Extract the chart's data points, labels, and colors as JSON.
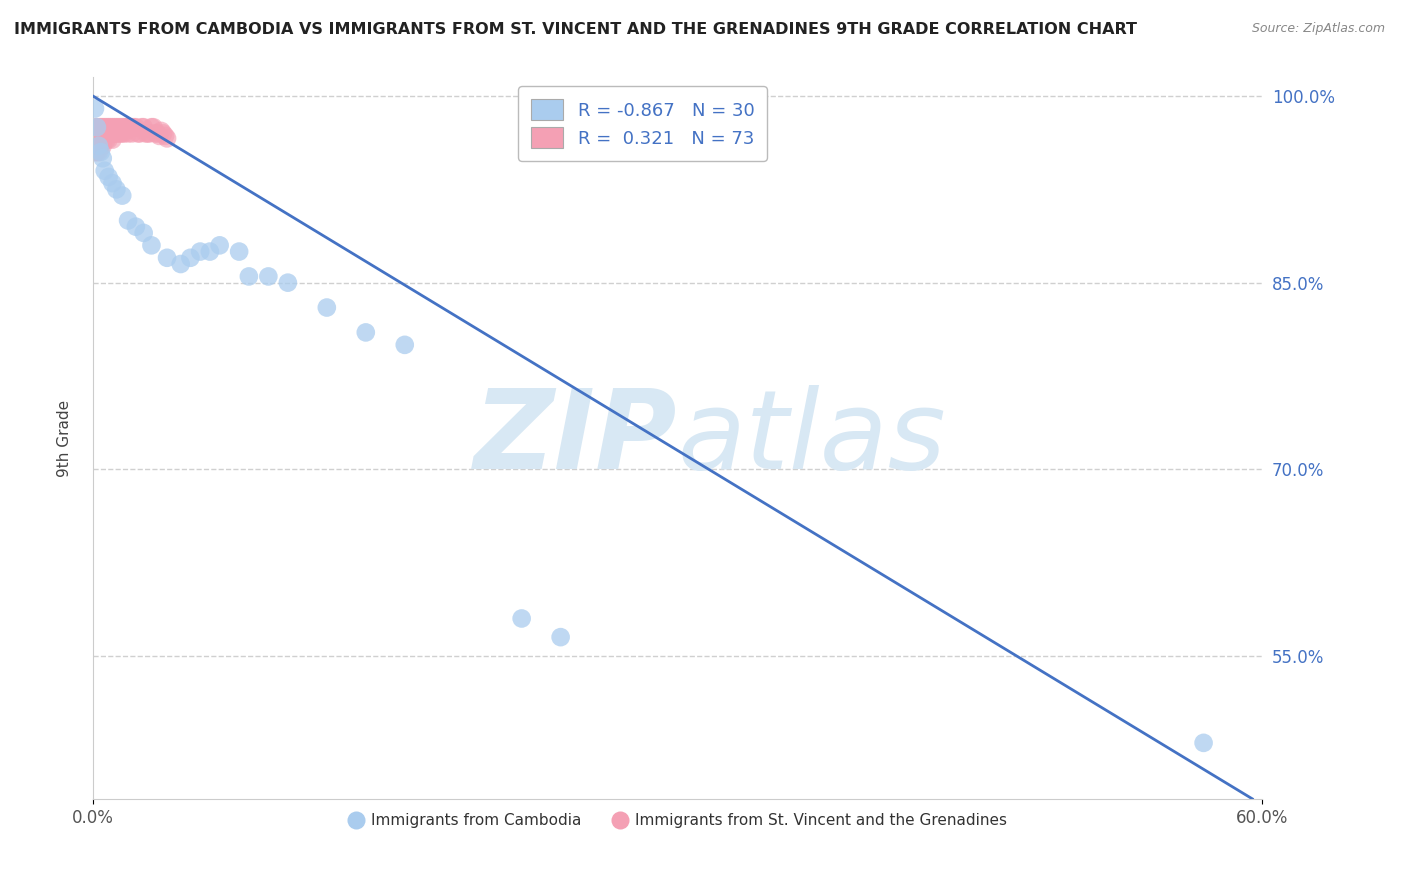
{
  "title": "IMMIGRANTS FROM CAMBODIA VS IMMIGRANTS FROM ST. VINCENT AND THE GRENADINES 9TH GRADE CORRELATION CHART",
  "source": "Source: ZipAtlas.com",
  "ylabel": "9th Grade",
  "xlabel": "",
  "blue_label": "Immigrants from Cambodia",
  "pink_label": "Immigrants from St. Vincent and the Grenadines",
  "blue_R": -0.867,
  "blue_N": 30,
  "pink_R": 0.321,
  "pink_N": 73,
  "xlim": [
    0.0,
    0.6
  ],
  "ylim": [
    0.435,
    1.015
  ],
  "yticks": [
    0.55,
    0.7,
    0.85,
    1.0
  ],
  "ytick_labels": [
    "55.0%",
    "70.0%",
    "85.0%",
    "100.0%"
  ],
  "xtick_vals": [
    0.0,
    0.6
  ],
  "xtick_labels": [
    "0.0%",
    "60.0%"
  ],
  "blue_color": "#aaccee",
  "pink_color": "#f4a0b4",
  "line_color": "#4472c4",
  "watermark_zip": "ZIP",
  "watermark_atlas": "atlas",
  "watermark_color": "#d8e8f4",
  "background_color": "#ffffff",
  "grid_color": "#d0d0d0",
  "blue_scatter_x": [
    0.001,
    0.002,
    0.003,
    0.004,
    0.005,
    0.006,
    0.008,
    0.01,
    0.012,
    0.015,
    0.018,
    0.022,
    0.026,
    0.03,
    0.038,
    0.045,
    0.05,
    0.055,
    0.06,
    0.065,
    0.075,
    0.08,
    0.09,
    0.1,
    0.12,
    0.14,
    0.16,
    0.22,
    0.24,
    0.57
  ],
  "blue_scatter_y": [
    0.99,
    0.975,
    0.96,
    0.955,
    0.95,
    0.94,
    0.935,
    0.93,
    0.925,
    0.92,
    0.9,
    0.895,
    0.89,
    0.88,
    0.87,
    0.865,
    0.87,
    0.875,
    0.875,
    0.88,
    0.875,
    0.855,
    0.855,
    0.85,
    0.83,
    0.81,
    0.8,
    0.58,
    0.565,
    0.48
  ],
  "pink_scatter_x": [
    0.001,
    0.001,
    0.001,
    0.001,
    0.001,
    0.002,
    0.002,
    0.002,
    0.002,
    0.002,
    0.003,
    0.003,
    0.003,
    0.003,
    0.003,
    0.004,
    0.004,
    0.004,
    0.004,
    0.005,
    0.005,
    0.005,
    0.005,
    0.006,
    0.006,
    0.006,
    0.007,
    0.007,
    0.007,
    0.008,
    0.008,
    0.008,
    0.009,
    0.009,
    0.01,
    0.01,
    0.01,
    0.011,
    0.011,
    0.012,
    0.012,
    0.013,
    0.013,
    0.014,
    0.014,
    0.015,
    0.015,
    0.016,
    0.016,
    0.017,
    0.018,
    0.018,
    0.019,
    0.02,
    0.02,
    0.021,
    0.022,
    0.023,
    0.024,
    0.025,
    0.026,
    0.027,
    0.028,
    0.029,
    0.03,
    0.031,
    0.032,
    0.033,
    0.034,
    0.035,
    0.036,
    0.037,
    0.038
  ],
  "pink_scatter_y": [
    0.975,
    0.97,
    0.965,
    0.96,
    0.955,
    0.975,
    0.97,
    0.965,
    0.96,
    0.955,
    0.975,
    0.97,
    0.965,
    0.96,
    0.955,
    0.975,
    0.97,
    0.965,
    0.96,
    0.975,
    0.97,
    0.965,
    0.96,
    0.975,
    0.97,
    0.965,
    0.975,
    0.97,
    0.965,
    0.975,
    0.97,
    0.965,
    0.975,
    0.97,
    0.975,
    0.97,
    0.965,
    0.975,
    0.97,
    0.975,
    0.97,
    0.975,
    0.97,
    0.975,
    0.97,
    0.975,
    0.97,
    0.975,
    0.97,
    0.975,
    0.975,
    0.97,
    0.975,
    0.975,
    0.97,
    0.975,
    0.975,
    0.97,
    0.97,
    0.975,
    0.975,
    0.97,
    0.97,
    0.97,
    0.975,
    0.975,
    0.97,
    0.97,
    0.968,
    0.972,
    0.97,
    0.968,
    0.966
  ],
  "trend_x": [
    0.0,
    0.595
  ],
  "trend_y": [
    1.0,
    0.435
  ]
}
